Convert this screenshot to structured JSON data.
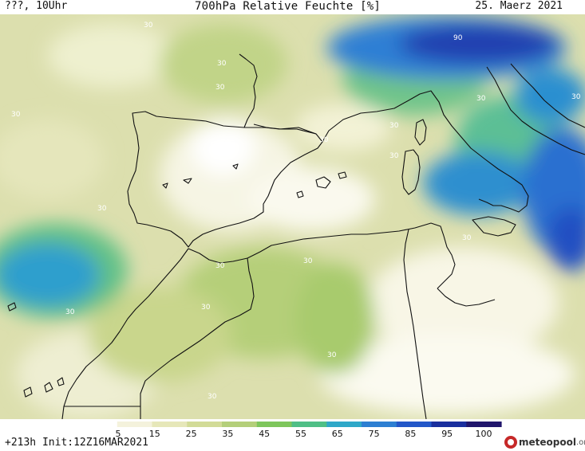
{
  "header": {
    "left_label": "???, 10Uhr",
    "title": "700hPa Relative Feuchte [%]",
    "date": "25. Maerz 2021"
  },
  "footer": {
    "run_info": "+213h Init:12Z16MAR2021",
    "brand_name": "meteopool",
    "brand_tld": ".org"
  },
  "map": {
    "contour_labels": [
      "30",
      "30",
      "30",
      "30",
      "30",
      "30",
      "30",
      "30",
      "30",
      "30",
      "30",
      "30",
      "30",
      "30",
      "30",
      "30",
      "30",
      "90"
    ]
  },
  "colorbar": {
    "ticks": [
      "5",
      "15",
      "25",
      "35",
      "45",
      "55",
      "65",
      "75",
      "85",
      "95",
      "100"
    ],
    "colors": [
      "#ffffff",
      "#f4f2dc",
      "#e6e7b9",
      "#d2db97",
      "#b4cf7a",
      "#7ec65c",
      "#4fbf86",
      "#2fa8c8",
      "#2d7fd2",
      "#2357c8",
      "#1a2f9e",
      "#21166c"
    ]
  }
}
